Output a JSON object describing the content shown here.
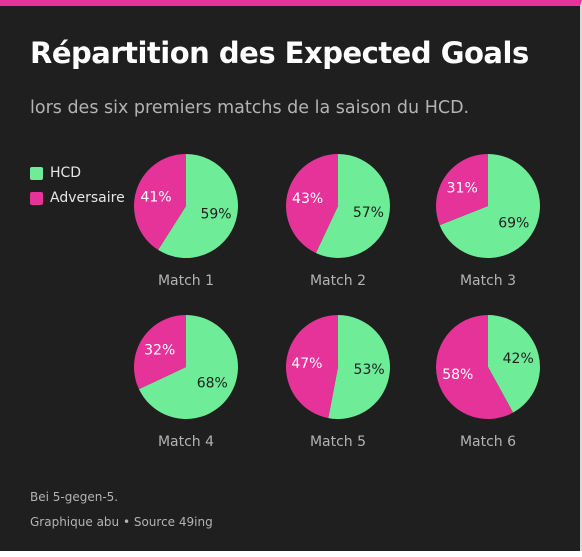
{
  "header": {
    "title": "Répartition des Expected Goals",
    "subtitle": "lors des six premiers matchs de la saison du HCD."
  },
  "legend": [
    {
      "label": "HCD",
      "color": "#6fec97"
    },
    {
      "label": "Adversaire",
      "color": "#e5339a"
    }
  ],
  "footer": {
    "note": "Bei 5-gegen-5.",
    "credit": "Graphique abu • Source 49ing"
  },
  "colors": {
    "hcd": "#6fec97",
    "opponent": "#e5339a",
    "background": "#1f1f1f",
    "accent": "#e5339a"
  },
  "chart_data": {
    "type": "pie",
    "title": "Répartition des Expected Goals",
    "subtitle": "lors des six premiers matchs de la saison du HCD.",
    "legend_placement": "top-left",
    "series_names": [
      "HCD",
      "Adversaire"
    ],
    "pies": [
      {
        "label": "Match 1",
        "hcd": 59,
        "opponent": 41,
        "hcd_text": "59%",
        "opponent_text": "41%"
      },
      {
        "label": "Match 2",
        "hcd": 57,
        "opponent": 43,
        "hcd_text": "57%",
        "opponent_text": "43%"
      },
      {
        "label": "Match 3",
        "hcd": 69,
        "opponent": 31,
        "hcd_text": "69%",
        "opponent_text": "31%"
      },
      {
        "label": "Match 4",
        "hcd": 68,
        "opponent": 32,
        "hcd_text": "68%",
        "opponent_text": "32%"
      },
      {
        "label": "Match 5",
        "hcd": 53,
        "opponent": 47,
        "hcd_text": "53%",
        "opponent_text": "47%"
      },
      {
        "label": "Match 6",
        "hcd": 42,
        "opponent": 58,
        "hcd_text": "42%",
        "opponent_text": "58%"
      }
    ]
  }
}
